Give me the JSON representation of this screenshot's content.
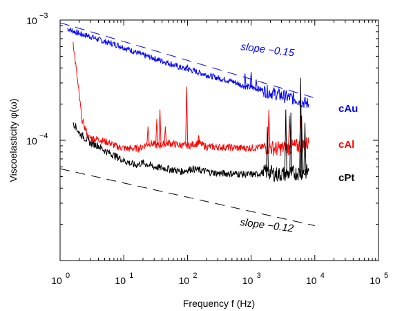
{
  "chart_data": {
    "type": "line",
    "title": "",
    "xlabel": "Frequency f (Hz)",
    "ylabel": "Viscoelasticity φ(ω)",
    "xscale": "log",
    "yscale": "log",
    "xlim": [
      1,
      100000
    ],
    "ylim": [
      1e-05,
      0.001
    ],
    "grid": false,
    "x_ticks": [
      {
        "base": "10",
        "exp": "0",
        "value": 1
      },
      {
        "base": "10",
        "exp": "1",
        "value": 10
      },
      {
        "base": "10",
        "exp": "2",
        "value": 100
      },
      {
        "base": "10",
        "exp": "3",
        "value": 1000
      },
      {
        "base": "10",
        "exp": "4",
        "value": 10000
      },
      {
        "base": "10",
        "exp": "5",
        "value": 100000
      }
    ],
    "y_ticks": [
      {
        "base": "10",
        "exp": "−4",
        "value": 0.0001
      },
      {
        "base": "10",
        "exp": "−3",
        "value": 0.001
      }
    ],
    "series": [
      {
        "name": "cAu",
        "color": "#0000ff",
        "x": [
          1.3,
          2,
          3,
          5,
          8,
          12,
          20,
          30,
          50,
          80,
          120,
          200,
          300,
          500,
          800,
          1200,
          2000,
          3000,
          5000,
          8000
        ],
        "y": [
          0.00085,
          0.00077,
          0.00073,
          0.00066,
          0.00062,
          0.00057,
          0.00051,
          0.00048,
          0.00044,
          0.0004,
          0.00038,
          0.00035,
          0.00033,
          0.00031,
          0.00028,
          0.00027,
          0.00025,
          0.000235,
          0.00022,
          0.0002
        ],
        "spikes": [
          {
            "x": 800,
            "y": 0.00036
          },
          {
            "x": 1000,
            "y": 0.00037
          },
          {
            "x": 1200,
            "y": 0.00032
          },
          {
            "x": 100,
            "y": 0.00042
          }
        ]
      },
      {
        "name": "cAl",
        "color": "#ff0000",
        "x": [
          1.6,
          2.2,
          2.8,
          4,
          6,
          8,
          12,
          18,
          25,
          35,
          50,
          70,
          100,
          150,
          200,
          300,
          500,
          800,
          1200,
          1800,
          2500,
          4000,
          6000,
          8000
        ],
        "y": [
          0.00066,
          0.00015,
          0.000105,
          0.000102,
          9.5e-05,
          8.8e-05,
          8.5e-05,
          8.6e-05,
          9.5e-05,
          9e-05,
          9.5e-05,
          9.2e-05,
          9e-05,
          9.5e-05,
          8.8e-05,
          8.8e-05,
          8.7e-05,
          8.6e-05,
          8.7e-05,
          8.8e-05,
          8.5e-05,
          8.7e-05,
          9e-05,
          9.5e-05
        ],
        "spikes": [
          {
            "x": 24,
            "y": 0.00013
          },
          {
            "x": 33,
            "y": 0.00015
          },
          {
            "x": 37,
            "y": 0.00018
          },
          {
            "x": 45,
            "y": 0.00013
          },
          {
            "x": 97,
            "y": 0.00028
          },
          {
            "x": 150,
            "y": 0.00011
          },
          {
            "x": 1900,
            "y": 0.00018
          },
          {
            "x": 4000,
            "y": 0.00016
          },
          {
            "x": 6000,
            "y": 0.00016
          }
        ]
      },
      {
        "name": "cPt",
        "color": "#000000",
        "x": [
          1.6,
          2,
          3,
          4,
          5,
          7,
          10,
          15,
          20,
          30,
          50,
          80,
          120,
          200,
          300,
          500,
          800,
          1200,
          1800,
          2500,
          4000,
          6000,
          8000
        ],
        "y": [
          0.000142,
          0.000115,
          9.5e-05,
          9e-05,
          8.2e-05,
          7.5e-05,
          6.8e-05,
          6.2e-05,
          6.5e-05,
          6e-05,
          5.8e-05,
          5.5e-05,
          5.8e-05,
          5.5e-05,
          5.3e-05,
          5.3e-05,
          5.2e-05,
          5.2e-05,
          5.5e-05,
          5.2e-05,
          5.3e-05,
          5.4e-05,
          5.5e-05
        ],
        "spikes": [
          {
            "x": 1800,
            "y": 0.00013
          },
          {
            "x": 3500,
            "y": 0.00018
          },
          {
            "x": 4200,
            "y": 0.00017
          },
          {
            "x": 6000,
            "y": 0.00033
          },
          {
            "x": 6200,
            "y": 0.00016
          },
          {
            "x": 7000,
            "y": 0.00014
          }
        ]
      }
    ],
    "reference_lines": [
      {
        "label": "slope −0.15",
        "color": "#0000ff",
        "x1": 1,
        "y1": 0.00095,
        "x2": 10000,
        "y2": 0.000225
      },
      {
        "label": "slope −0.12",
        "color": "#000000",
        "x1": 1,
        "y1": 5.8e-05,
        "x2": 10000,
        "y2": 1.95e-05
      }
    ]
  }
}
